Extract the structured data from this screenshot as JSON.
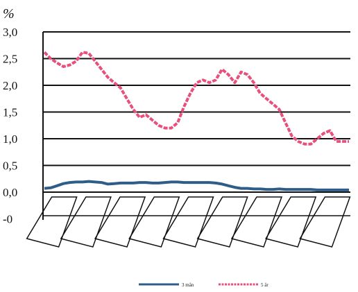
{
  "chart_data": {
    "type": "line",
    "unit_label": "%",
    "y_ticks": [
      "3,0",
      "2,5",
      "2,0",
      "1,5",
      "1,0",
      "0,5",
      "0,0",
      "-0"
    ],
    "ylim": [
      -0.5,
      3.0
    ],
    "grid": true,
    "legend_position": "bottom",
    "x_category_count": 9,
    "x": [
      0,
      1,
      2,
      3,
      4,
      5,
      6,
      7,
      8,
      9,
      10,
      11,
      12,
      13,
      14,
      15,
      16,
      17,
      18,
      19,
      20,
      21,
      22,
      23,
      24,
      25,
      26,
      27,
      28,
      29,
      30,
      31,
      32,
      33,
      34,
      35,
      36,
      37,
      38,
      39,
      40,
      41,
      42,
      43,
      44,
      45,
      46,
      47,
      48
    ],
    "series": [
      {
        "name": "3 mån",
        "color": "#2f5d8a",
        "values": [
          0.07,
          0.08,
          0.12,
          0.16,
          0.18,
          0.19,
          0.19,
          0.2,
          0.19,
          0.18,
          0.15,
          0.16,
          0.17,
          0.17,
          0.17,
          0.18,
          0.18,
          0.17,
          0.17,
          0.18,
          0.19,
          0.19,
          0.18,
          0.18,
          0.18,
          0.18,
          0.18,
          0.17,
          0.15,
          0.12,
          0.09,
          0.07,
          0.07,
          0.06,
          0.06,
          0.05,
          0.05,
          0.06,
          0.05,
          0.05,
          0.05,
          0.05,
          0.05,
          0.04,
          0.04,
          0.04,
          0.04,
          0.04,
          0.04
        ]
      },
      {
        "name": "5 år",
        "color": "#e8507c",
        "values": [
          2.62,
          2.5,
          2.42,
          2.35,
          2.38,
          2.45,
          2.62,
          2.6,
          2.45,
          2.3,
          2.15,
          2.05,
          1.95,
          1.75,
          1.55,
          1.4,
          1.45,
          1.35,
          1.25,
          1.2,
          1.2,
          1.3,
          1.6,
          1.85,
          2.05,
          2.1,
          2.05,
          2.1,
          2.3,
          2.2,
          2.05,
          2.25,
          2.2,
          2.05,
          1.85,
          1.75,
          1.65,
          1.55,
          1.3,
          1.05,
          0.95,
          0.9,
          0.9,
          1.0,
          1.1,
          1.15,
          0.95,
          0.95,
          0.95
        ]
      }
    ]
  }
}
